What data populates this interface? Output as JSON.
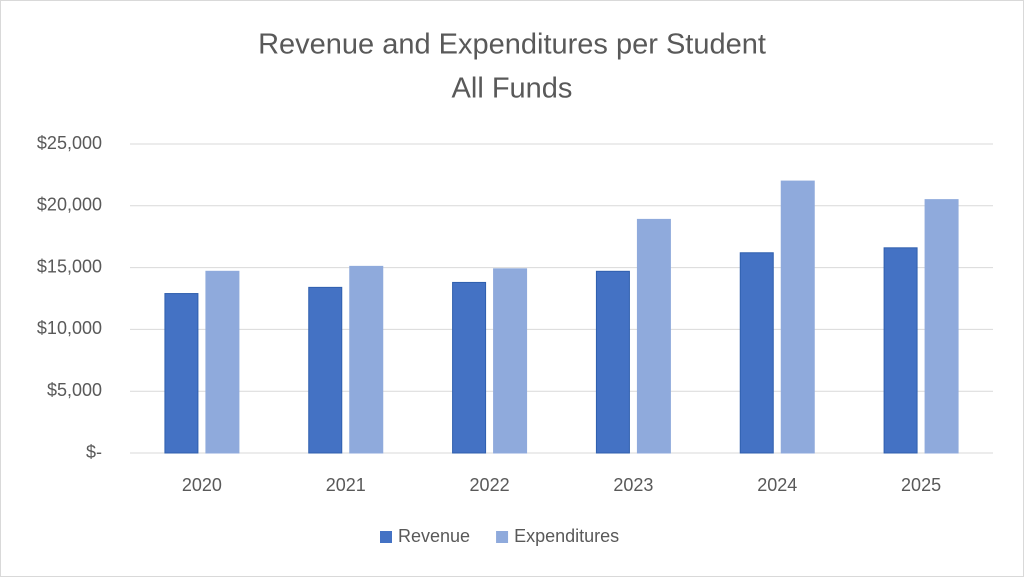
{
  "chart_data": {
    "type": "bar",
    "title": "Revenue and Expenditures per Student",
    "subtitle": "All Funds",
    "categories": [
      "2020",
      "2021",
      "2022",
      "2023",
      "2024",
      "2025"
    ],
    "series": [
      {
        "name": "Revenue",
        "color": "#4472c4",
        "values": [
          12900,
          13400,
          13800,
          14700,
          16200,
          16600
        ]
      },
      {
        "name": "Expenditures",
        "color": "#8faadc",
        "values": [
          14700,
          15100,
          14900,
          18900,
          22000,
          20500
        ]
      }
    ],
    "ylim": [
      0,
      25000
    ],
    "yticks": [
      {
        "value": 0,
        "label": "$-"
      },
      {
        "value": 5000,
        "label": "$5,000"
      },
      {
        "value": 10000,
        "label": "$10,000"
      },
      {
        "value": 15000,
        "label": "$15,000"
      },
      {
        "value": 20000,
        "label": "$20,000"
      },
      {
        "value": 25000,
        "label": "$25,000"
      }
    ],
    "grid": true,
    "legend": "bottom"
  }
}
